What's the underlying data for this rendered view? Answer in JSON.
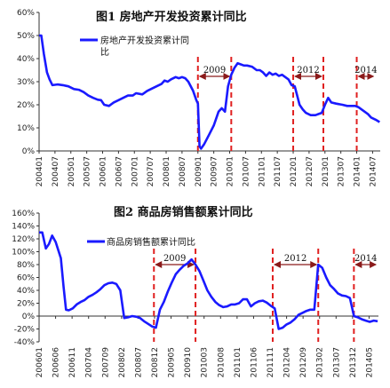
{
  "chart_data": [
    {
      "type": "line",
      "title": "图1  房地产开发投资累计同比",
      "legend": [
        "房地产开发投资累计同",
        "比"
      ],
      "series": [
        {
          "name": "房地产开发投资累计同比",
          "color": "#1a1aff"
        }
      ],
      "y_ticks": [
        "60%",
        "50%",
        "40%",
        "30%",
        "20%",
        "10%",
        "0%"
      ],
      "ylim": [
        0,
        60
      ],
      "x_ticks": [
        "200401",
        "200407",
        "200501",
        "200507",
        "200601",
        "200607",
        "200701",
        "200707",
        "200801",
        "200807",
        "200901",
        "200907",
        "201001",
        "201007",
        "201101",
        "201107",
        "201201",
        "201207",
        "201301",
        "201307",
        "201401",
        "201407"
      ],
      "annotations": [
        {
          "label": "2009",
          "from": 2009.0,
          "to": 2010.05
        },
        {
          "label": "2012",
          "from": 2012.0,
          "to": 2012.95
        },
        {
          "label": "2014",
          "from": 2014.0,
          "to": 2014.58
        }
      ],
      "points": [
        [
          2004.0,
          50
        ],
        [
          2004.07,
          50
        ],
        [
          2004.15,
          42
        ],
        [
          2004.25,
          34
        ],
        [
          2004.33,
          31
        ],
        [
          2004.42,
          28.5
        ],
        [
          2004.58,
          28.8
        ],
        [
          2004.75,
          28.5
        ],
        [
          2004.85,
          28.2
        ],
        [
          2004.92,
          28
        ],
        [
          2005.1,
          26.8
        ],
        [
          2005.25,
          26.5
        ],
        [
          2005.4,
          25.5
        ],
        [
          2005.55,
          24
        ],
        [
          2005.7,
          23
        ],
        [
          2005.85,
          22.2
        ],
        [
          2005.95,
          22
        ],
        [
          2006.05,
          20
        ],
        [
          2006.2,
          19.5
        ],
        [
          2006.35,
          21
        ],
        [
          2006.5,
          22
        ],
        [
          2006.65,
          23
        ],
        [
          2006.8,
          24
        ],
        [
          2006.95,
          24
        ],
        [
          2007.05,
          25
        ],
        [
          2007.25,
          24.5
        ],
        [
          2007.4,
          26
        ],
        [
          2007.55,
          27
        ],
        [
          2007.7,
          28
        ],
        [
          2007.85,
          29
        ],
        [
          2007.95,
          30.5
        ],
        [
          2008.05,
          30
        ],
        [
          2008.15,
          31
        ],
        [
          2008.3,
          32
        ],
        [
          2008.4,
          31.5
        ],
        [
          2008.5,
          32
        ],
        [
          2008.6,
          31.5
        ],
        [
          2008.7,
          30
        ],
        [
          2008.85,
          26
        ],
        [
          2008.95,
          22
        ],
        [
          2009.0,
          20.5
        ],
        [
          2009.05,
          2
        ],
        [
          2009.1,
          1
        ],
        [
          2009.2,
          3
        ],
        [
          2009.35,
          7
        ],
        [
          2009.5,
          11
        ],
        [
          2009.65,
          17
        ],
        [
          2009.75,
          18.5
        ],
        [
          2009.85,
          17
        ],
        [
          2009.95,
          28
        ],
        [
          2010.05,
          33
        ],
        [
          2010.15,
          36
        ],
        [
          2010.25,
          38
        ],
        [
          2010.35,
          37.5
        ],
        [
          2010.45,
          37
        ],
        [
          2010.55,
          37
        ],
        [
          2010.7,
          36.5
        ],
        [
          2010.85,
          35
        ],
        [
          2010.95,
          35
        ],
        [
          2011.05,
          34
        ],
        [
          2011.15,
          32.5
        ],
        [
          2011.25,
          34
        ],
        [
          2011.35,
          33
        ],
        [
          2011.45,
          33.5
        ],
        [
          2011.55,
          32.5
        ],
        [
          2011.65,
          33
        ],
        [
          2011.75,
          32
        ],
        [
          2011.85,
          31
        ],
        [
          2011.95,
          28.5
        ],
        [
          2012.05,
          28
        ],
        [
          2012.2,
          20
        ],
        [
          2012.3,
          18
        ],
        [
          2012.4,
          16.5
        ],
        [
          2012.55,
          15.5
        ],
        [
          2012.7,
          15.5
        ],
        [
          2012.8,
          16
        ],
        [
          2012.9,
          16.5
        ],
        [
          2013.0,
          20
        ],
        [
          2013.1,
          23
        ],
        [
          2013.2,
          21
        ],
        [
          2013.35,
          20.5
        ],
        [
          2013.55,
          20
        ],
        [
          2013.7,
          19.5
        ],
        [
          2013.85,
          19.5
        ],
        [
          2013.95,
          19.5
        ],
        [
          2014.05,
          19
        ],
        [
          2014.15,
          18
        ],
        [
          2014.25,
          17
        ],
        [
          2014.35,
          16
        ],
        [
          2014.45,
          14.5
        ],
        [
          2014.6,
          13.5
        ],
        [
          2014.72,
          12.5
        ]
      ]
    },
    {
      "type": "line",
      "title": "图2  商品房销售额累计同比",
      "legend": [
        "商品房销售额累计同比"
      ],
      "series": [
        {
          "name": "商品房销售额累计同比",
          "color": "#1a1aff"
        }
      ],
      "y_ticks": [
        "160%",
        "140%",
        "120%",
        "100%",
        "80%",
        "60%",
        "40%",
        "20%",
        "0%",
        "-20%",
        "-40%"
      ],
      "ylim": [
        -40,
        160
      ],
      "x_ticks": [
        "200601",
        "200606",
        "200611",
        "200704",
        "200709",
        "200802",
        "200807",
        "200812",
        "200905",
        "200910",
        "201003",
        "201008",
        "201101",
        "201106",
        "201111",
        "201204",
        "201209",
        "201302",
        "201307",
        "201312",
        "201405"
      ],
      "annotations": [
        {
          "label": "2009",
          "from": 2008.9,
          "to": 2009.95
        },
        {
          "label": "2012",
          "from": 2011.9,
          "to": 2013.05
        },
        {
          "label": "2014",
          "from": 2013.95,
          "to": 2014.55
        }
      ],
      "points": [
        [
          2006.0,
          130
        ],
        [
          2006.08,
          130
        ],
        [
          2006.17,
          105
        ],
        [
          2006.25,
          112
        ],
        [
          2006.33,
          125
        ],
        [
          2006.42,
          115
        ],
        [
          2006.55,
          90
        ],
        [
          2006.62,
          45
        ],
        [
          2006.68,
          10
        ],
        [
          2006.75,
          9
        ],
        [
          2006.85,
          12
        ],
        [
          2006.95,
          18
        ],
        [
          2007.05,
          22
        ],
        [
          2007.15,
          25
        ],
        [
          2007.25,
          30
        ],
        [
          2007.35,
          33
        ],
        [
          2007.45,
          37
        ],
        [
          2007.55,
          42
        ],
        [
          2007.65,
          48
        ],
        [
          2007.75,
          51
        ],
        [
          2007.85,
          52
        ],
        [
          2007.95,
          50
        ],
        [
          2008.05,
          40
        ],
        [
          2008.15,
          -3
        ],
        [
          2008.25,
          -2
        ],
        [
          2008.35,
          0
        ],
        [
          2008.45,
          -1
        ],
        [
          2008.55,
          -3
        ],
        [
          2008.65,
          -8
        ],
        [
          2008.75,
          -12
        ],
        [
          2008.85,
          -16
        ],
        [
          2008.95,
          -18
        ],
        [
          2009.05,
          10
        ],
        [
          2009.15,
          22
        ],
        [
          2009.25,
          38
        ],
        [
          2009.35,
          52
        ],
        [
          2009.45,
          65
        ],
        [
          2009.55,
          72
        ],
        [
          2009.65,
          78
        ],
        [
          2009.75,
          82
        ],
        [
          2009.85,
          88
        ],
        [
          2009.95,
          80
        ],
        [
          2010.05,
          70
        ],
        [
          2010.15,
          55
        ],
        [
          2010.25,
          40
        ],
        [
          2010.35,
          30
        ],
        [
          2010.45,
          22
        ],
        [
          2010.55,
          17
        ],
        [
          2010.65,
          14
        ],
        [
          2010.75,
          15
        ],
        [
          2010.85,
          18
        ],
        [
          2010.95,
          18
        ],
        [
          2011.05,
          20
        ],
        [
          2011.15,
          26
        ],
        [
          2011.25,
          26
        ],
        [
          2011.35,
          15
        ],
        [
          2011.45,
          20
        ],
        [
          2011.55,
          23
        ],
        [
          2011.65,
          24
        ],
        [
          2011.75,
          21
        ],
        [
          2011.85,
          16
        ],
        [
          2011.95,
          12
        ],
        [
          2012.05,
          -20
        ],
        [
          2012.15,
          -18
        ],
        [
          2012.25,
          -13
        ],
        [
          2012.35,
          -10
        ],
        [
          2012.45,
          -5
        ],
        [
          2012.55,
          2
        ],
        [
          2012.65,
          5
        ],
        [
          2012.75,
          8
        ],
        [
          2012.85,
          10
        ],
        [
          2012.95,
          10
        ],
        [
          2013.05,
          80
        ],
        [
          2013.15,
          75
        ],
        [
          2013.25,
          60
        ],
        [
          2013.35,
          48
        ],
        [
          2013.45,
          42
        ],
        [
          2013.55,
          35
        ],
        [
          2013.65,
          32
        ],
        [
          2013.75,
          31
        ],
        [
          2013.85,
          28
        ],
        [
          2013.95,
          0
        ],
        [
          2014.05,
          -2
        ],
        [
          2014.15,
          -5
        ],
        [
          2014.25,
          -7
        ],
        [
          2014.35,
          -9
        ],
        [
          2014.45,
          -7
        ],
        [
          2014.55,
          -8
        ]
      ]
    }
  ]
}
